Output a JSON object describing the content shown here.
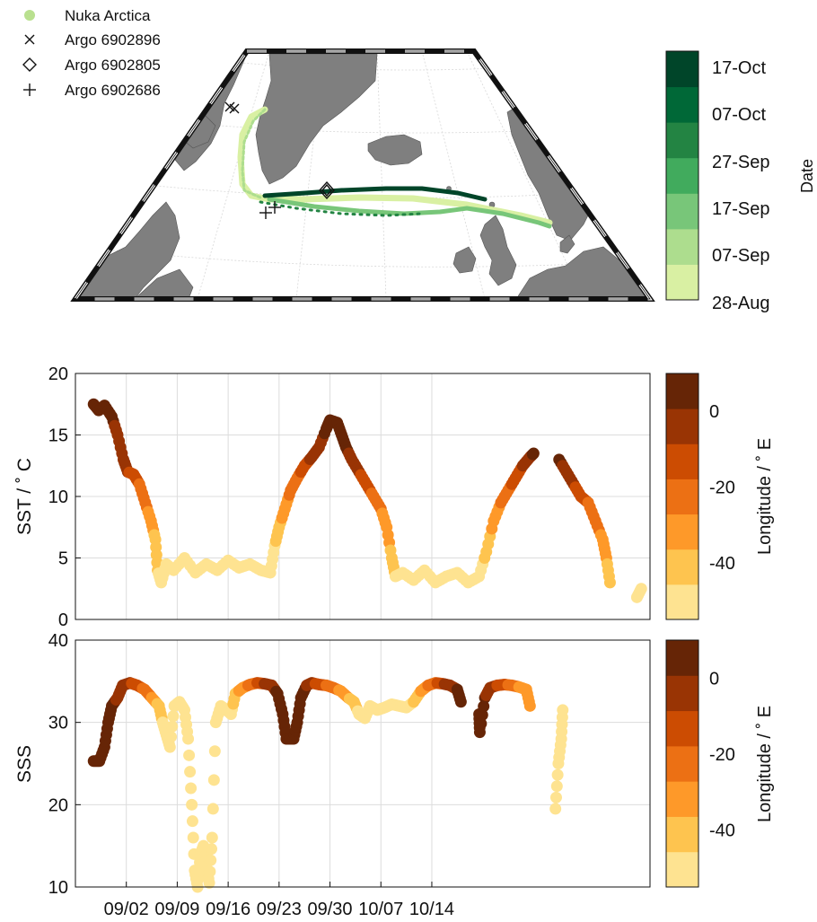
{
  "colors": {
    "date_scale": [
      "#d9f0a3",
      "#addd8e",
      "#78c679",
      "#41ab5d",
      "#238443",
      "#006837",
      "#004529"
    ],
    "lon_scale": [
      "#fee391",
      "#fec44f",
      "#fe9929",
      "#ec7014",
      "#cc4c02",
      "#993404",
      "#662506"
    ],
    "land": "#7f7f7f",
    "ocean": "#ffffff",
    "grid": "#dcdcdc"
  },
  "map": {
    "legend": [
      {
        "marker": "filled-circle",
        "label": "Nuka Arctica"
      },
      {
        "marker": "x-cross",
        "label": "Argo 6902896"
      },
      {
        "marker": "diamond",
        "label": "Argo 6902805"
      },
      {
        "marker": "plus",
        "label": "Argo 6902686"
      }
    ],
    "colorbar": {
      "label": "Date",
      "ticks": [
        "17-Oct",
        "07-Oct",
        "27-Sep",
        "17-Sep",
        "07-Sep",
        "28-Aug"
      ]
    }
  },
  "chart_data": [
    {
      "type": "scatter",
      "title": "",
      "xlabel": "",
      "ylabel": "SST / ˚ C",
      "ylim": [
        0,
        20
      ],
      "yticks": [
        "0",
        "5",
        "10",
        "15",
        "20"
      ],
      "grid": true,
      "color_by": "Longitude",
      "colorbar": {
        "label": "Longitude / ˚ E",
        "ticks": [
          "0",
          "-20",
          "-40"
        ],
        "range": [
          -55,
          10
        ]
      },
      "points": [
        [
          2.5,
          17.5,
          5
        ],
        [
          3.2,
          17.0,
          3
        ],
        [
          4.0,
          17.4,
          5
        ],
        [
          5.0,
          16.5,
          2
        ],
        [
          5.8,
          15.0,
          -2
        ],
        [
          6.6,
          13.0,
          -5
        ],
        [
          7.2,
          12.0,
          -8
        ],
        [
          8.0,
          11.8,
          -12
        ],
        [
          8.8,
          11.0,
          -18
        ],
        [
          9.6,
          9.5,
          -24
        ],
        [
          10.4,
          8.0,
          -32
        ],
        [
          11.0,
          6.5,
          -38
        ],
        [
          11.3,
          4.0,
          -45
        ],
        [
          11.8,
          3.0,
          -50
        ],
        [
          12.5,
          4.5,
          -52
        ],
        [
          13.5,
          4.0,
          -52
        ],
        [
          15.0,
          5.0,
          -52
        ],
        [
          16.5,
          3.8,
          -52
        ],
        [
          18.0,
          4.5,
          -52
        ],
        [
          19.5,
          4.0,
          -52
        ],
        [
          21.0,
          4.8,
          -52
        ],
        [
          22.5,
          4.2,
          -52
        ],
        [
          24.0,
          4.5,
          -52
        ],
        [
          25.5,
          4.0,
          -52
        ],
        [
          26.8,
          3.8,
          -52
        ],
        [
          27.4,
          6.0,
          -46
        ],
        [
          28.0,
          7.5,
          -40
        ],
        [
          28.8,
          9.0,
          -32
        ],
        [
          29.6,
          10.5,
          -25
        ],
        [
          30.5,
          11.5,
          -20
        ],
        [
          31.5,
          12.5,
          -12
        ],
        [
          32.5,
          13.2,
          -6
        ],
        [
          33.5,
          14.0,
          -2
        ],
        [
          34.5,
          15.5,
          3
        ],
        [
          35.0,
          16.2,
          6
        ],
        [
          36.0,
          16.0,
          6
        ],
        [
          36.6,
          15.0,
          5
        ],
        [
          37.2,
          14.0,
          3
        ],
        [
          38.0,
          13.0,
          -2
        ],
        [
          39.0,
          12.0,
          -8
        ],
        [
          40.0,
          11.0,
          -14
        ],
        [
          41.0,
          10.0,
          -20
        ],
        [
          42.0,
          9.0,
          -26
        ],
        [
          42.8,
          7.5,
          -32
        ],
        [
          43.5,
          5.0,
          -40
        ],
        [
          44.0,
          3.5,
          -46
        ],
        [
          45.0,
          3.8,
          -50
        ],
        [
          46.5,
          3.2,
          -52
        ],
        [
          48.0,
          4.0,
          -52
        ],
        [
          49.5,
          3.0,
          -52
        ],
        [
          51.0,
          3.5,
          -52
        ],
        [
          52.5,
          3.8,
          -52
        ],
        [
          54.0,
          3.0,
          -52
        ],
        [
          55.5,
          3.5,
          -52
        ],
        [
          56.5,
          5.5,
          -42
        ],
        [
          57.5,
          8.0,
          -34
        ],
        [
          58.5,
          9.5,
          -26
        ],
        [
          59.5,
          10.5,
          -20
        ],
        [
          60.5,
          11.5,
          -14
        ],
        [
          61.5,
          12.5,
          -8
        ],
        [
          62.5,
          13.2,
          -2
        ],
        [
          63.0,
          13.5,
          2
        ],
        [
          66.5,
          13.0,
          3
        ],
        [
          67.5,
          12.0,
          -2
        ],
        [
          68.5,
          11.0,
          -8
        ],
        [
          69.5,
          10.0,
          -14
        ],
        [
          70.5,
          9.5,
          -18
        ],
        [
          71.5,
          8.0,
          -24
        ],
        [
          72.5,
          6.5,
          -30
        ],
        [
          73.0,
          5.0,
          -36
        ],
        [
          73.5,
          3.0,
          -42
        ],
        [
          77.2,
          1.8,
          -52
        ],
        [
          77.8,
          2.5,
          -52
        ]
      ]
    },
    {
      "type": "scatter",
      "title": "",
      "xlabel": "",
      "ylabel": "SSS",
      "ylim": [
        10,
        40
      ],
      "yticks": [
        "10",
        "20",
        "30",
        "40"
      ],
      "xticks": [
        {
          "day": 7,
          "label": "09/02"
        },
        {
          "day": 14,
          "label": "09/09"
        },
        {
          "day": 21,
          "label": "09/16"
        },
        {
          "day": 28,
          "label": "09/23"
        },
        {
          "day": 35,
          "label": "09/30"
        },
        {
          "day": 42,
          "label": "10/07"
        },
        {
          "day": 49,
          "label": "10/14"
        }
      ],
      "grid": true,
      "color_by": "Longitude",
      "colorbar": {
        "label": "Longitude / ˚ E",
        "ticks": [
          "0",
          "-20",
          "-40"
        ],
        "range": [
          -55,
          10
        ]
      },
      "points": [
        [
          2.5,
          25.3,
          5
        ],
        [
          3.3,
          25.3,
          5
        ],
        [
          4.0,
          27.0,
          4
        ],
        [
          4.5,
          30.0,
          3
        ],
        [
          5.0,
          32.0,
          2
        ],
        [
          5.8,
          33.0,
          0
        ],
        [
          6.5,
          34.5,
          -2
        ],
        [
          7.5,
          34.8,
          -8
        ],
        [
          8.5,
          34.5,
          -14
        ],
        [
          9.5,
          34.0,
          -20
        ],
        [
          10.5,
          33.0,
          -28
        ],
        [
          11.5,
          32.0,
          -40
        ],
        [
          12.0,
          30.0,
          -46
        ],
        [
          12.5,
          28.5,
          -50
        ],
        [
          13.0,
          27.0,
          -52
        ],
        [
          13.6,
          32.0,
          -52
        ],
        [
          14.3,
          32.5,
          -52
        ],
        [
          15.0,
          31.5,
          -52
        ],
        [
          15.5,
          28.0,
          -52
        ],
        [
          16.0,
          20.0,
          -52
        ],
        [
          16.4,
          12.0,
          -52
        ],
        [
          16.8,
          10.0,
          -52
        ],
        [
          17.2,
          14.0,
          -52
        ],
        [
          17.6,
          15.0,
          -52
        ],
        [
          18.0,
          12.5,
          -52
        ],
        [
          18.4,
          10.5,
          -52
        ],
        [
          18.8,
          16.0,
          -52
        ],
        [
          19.3,
          30.0,
          -52
        ],
        [
          20.0,
          32.0,
          -52
        ],
        [
          20.8,
          31.5,
          -52
        ],
        [
          21.4,
          31.0,
          -50
        ],
        [
          22.0,
          33.5,
          -40
        ],
        [
          23.0,
          34.2,
          -32
        ],
        [
          24.0,
          34.6,
          -24
        ],
        [
          25.0,
          34.8,
          -16
        ],
        [
          26.0,
          34.7,
          -8
        ],
        [
          27.0,
          34.5,
          -2
        ],
        [
          27.8,
          33.5,
          3
        ],
        [
          28.5,
          31.0,
          5
        ],
        [
          29.0,
          28.0,
          6
        ],
        [
          30.0,
          28.0,
          6
        ],
        [
          30.5,
          30.0,
          6
        ],
        [
          31.0,
          33.0,
          4
        ],
        [
          31.8,
          34.5,
          0
        ],
        [
          32.5,
          34.8,
          -6
        ],
        [
          33.5,
          34.6,
          -12
        ],
        [
          34.5,
          34.5,
          -18
        ],
        [
          35.5,
          34.2,
          -24
        ],
        [
          36.5,
          33.8,
          -30
        ],
        [
          37.5,
          33.0,
          -36
        ],
        [
          38.3,
          32.5,
          -42
        ],
        [
          39.0,
          31.0,
          -48
        ],
        [
          39.8,
          30.5,
          -52
        ],
        [
          40.5,
          32.0,
          -52
        ],
        [
          41.5,
          31.5,
          -52
        ],
        [
          42.5,
          31.8,
          -52
        ],
        [
          43.5,
          32.2,
          -52
        ],
        [
          44.5,
          32.0,
          -52
        ],
        [
          45.5,
          31.8,
          -52
        ],
        [
          46.5,
          32.5,
          -44
        ],
        [
          47.5,
          33.8,
          -34
        ],
        [
          48.5,
          34.5,
          -26
        ],
        [
          49.5,
          34.8,
          -18
        ],
        [
          50.5,
          34.7,
          -10
        ],
        [
          51.5,
          34.5,
          -4
        ],
        [
          52.5,
          34.0,
          2
        ],
        [
          53.0,
          32.5,
          4
        ],
        [
          55.5,
          31.0,
          5
        ],
        [
          55.6,
          28.8,
          5
        ],
        [
          56.3,
          33.0,
          2
        ],
        [
          57.0,
          34.2,
          -4
        ],
        [
          58.0,
          34.5,
          -10
        ],
        [
          59.0,
          34.6,
          -16
        ],
        [
          60.0,
          34.5,
          -22
        ],
        [
          61.0,
          34.3,
          -28
        ],
        [
          62.0,
          34.0,
          -32
        ],
        [
          62.5,
          32.0,
          -36
        ],
        [
          66.0,
          19.5,
          -52
        ],
        [
          66.4,
          25.0,
          -52
        ],
        [
          66.8,
          28.0,
          -52
        ],
        [
          67.0,
          31.5,
          -52
        ]
      ]
    }
  ]
}
